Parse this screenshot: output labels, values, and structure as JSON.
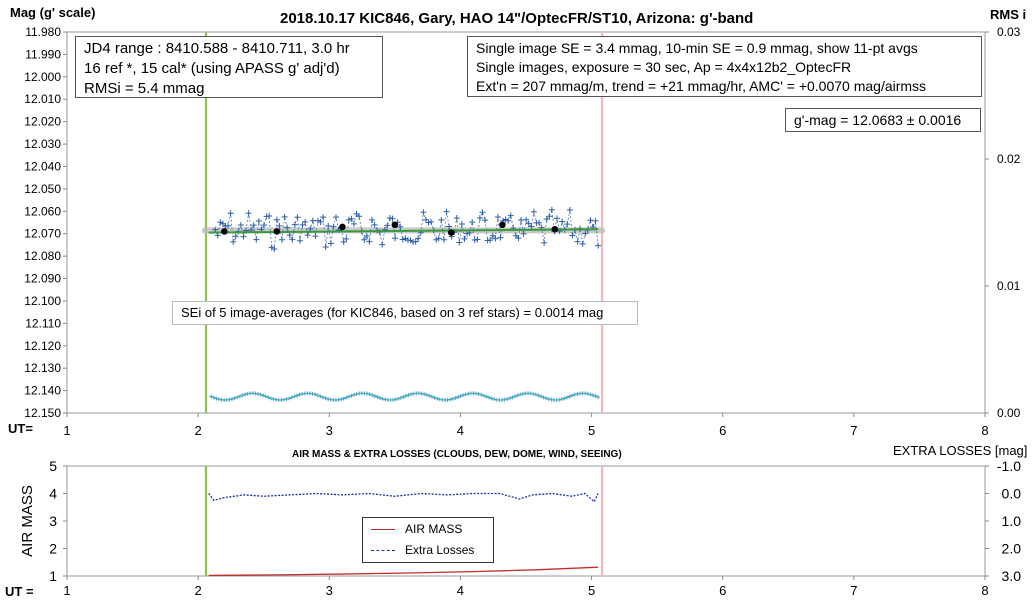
{
  "chart_data": [
    {
      "type": "scatter",
      "title": "2018.10.17 KIC846, Gary, HAO 14\"/OptecFR/ST10, Arizona: g'-band",
      "ylabel": "Mag (g' scale)",
      "y2label": "RMS i",
      "xlabel": "UT=",
      "xlim": [
        1,
        8
      ],
      "ylim": [
        11.98,
        12.15
      ],
      "y_reversed": true,
      "y2lim": [
        0.0,
        0.03
      ],
      "x_ticks": [
        "1",
        "2",
        "3",
        "4",
        "5",
        "6",
        "7",
        "8"
      ],
      "y_ticks": [
        "11.980",
        "11.990",
        "12.000",
        "12.010",
        "12.020",
        "12.030",
        "12.040",
        "12.050",
        "12.060",
        "12.070",
        "12.080",
        "12.090",
        "12.100",
        "12.110",
        "12.120",
        "12.130",
        "12.140",
        "12.150"
      ],
      "y2_ticks": [
        "0.03",
        "0.02",
        "0.01",
        "0.00"
      ],
      "vlines": [
        {
          "x": 2.06,
          "color": "#92c050"
        },
        {
          "x": 5.08,
          "color": "#f4b6b8"
        }
      ],
      "info_left": [
        "JD4 range : 8410.588 - 8410.711,  3.0  hr",
        "16 ref *, 15 cal* (using APASS g' adj'd)",
        "RMSi = 5.4 mmag"
      ],
      "info_right": [
        "Single image SE = 3.4 mmag, 10-min SE = 0.9 mmag, show  11-pt avgs",
        "Single images, exposure = 30 sec, Ap = 4x4x12b2_OptecFR",
        "Ext'n = 207 mmag/m, trend =  +21 mmag/hr, AMC' = +0.0070 mag/airmss"
      ],
      "result_label": "g'-mag = 12.0683 ± 0.0016",
      "sei_label": "SEi of 5 image-averages (for KIC846, based on 3 ref stars) = 0.0014 mag",
      "mean_mag": 12.0683,
      "trend": {
        "x": [
          2.08,
          5.05
        ],
        "y": [
          12.0695,
          12.068
        ]
      },
      "averages": {
        "x": [
          2.2,
          2.6,
          3.1,
          3.5,
          3.93,
          4.32,
          4.72
        ],
        "y": [
          12.069,
          12.069,
          12.067,
          12.066,
          12.0695,
          12.066,
          12.068
        ]
      },
      "rms_series": {
        "y_base": 12.1427,
        "amplitude": 0.0015,
        "period_hr": 0.42,
        "x_range": [
          2.1,
          5.05
        ]
      },
      "colors": {
        "points": "#2f5fa8",
        "averages": "#000000",
        "mean": "#3a9a3a",
        "band": "#bcbcbc",
        "rms": "#4aa6c0"
      }
    },
    {
      "type": "line",
      "title": "AIR MASS & EXTRA LOSSES (CLOUDS, DEW, DOME, WIND, SEEING)",
      "ylabel": "AIR MASS",
      "y2label": "EXTRA LOSSES [mag]",
      "xlabel": "UT =",
      "xlim": [
        1,
        8
      ],
      "ylim": [
        1,
        5
      ],
      "y2lim": [
        -1.0,
        3.0
      ],
      "y2_reversed": true,
      "x_ticks": [
        "1",
        "2",
        "3",
        "4",
        "5",
        "6",
        "7",
        "8"
      ],
      "y_ticks": [
        "5",
        "4",
        "3",
        "2",
        "1"
      ],
      "y2_ticks": [
        "-1.0",
        "0.0",
        "1.0",
        "2.0",
        "3.0"
      ],
      "legend": [
        "AIR MASS",
        "Extra Losses"
      ],
      "series": [
        {
          "name": "AIR MASS",
          "color": "#c0302a",
          "x": [
            2.08,
            2.6,
            3.1,
            3.6,
            4.1,
            4.6,
            5.05
          ],
          "y": [
            1.02,
            1.04,
            1.07,
            1.11,
            1.16,
            1.23,
            1.32
          ]
        },
        {
          "name": "Extra Losses",
          "color": "#1c2fa8",
          "x": [
            2.08,
            2.12,
            2.2,
            2.35,
            2.5,
            2.7,
            2.9,
            3.1,
            3.3,
            3.5,
            3.7,
            3.9,
            4.1,
            4.3,
            4.45,
            4.55,
            4.7,
            4.85,
            4.95,
            5.02,
            5.05
          ],
          "y": [
            0.0,
            0.25,
            0.15,
            0.05,
            0.1,
            0.05,
            0.0,
            0.05,
            0.0,
            0.1,
            0.0,
            0.05,
            0.0,
            0.0,
            0.2,
            0.05,
            0.0,
            0.1,
            0.0,
            0.3,
            0.0
          ]
        }
      ]
    }
  ]
}
